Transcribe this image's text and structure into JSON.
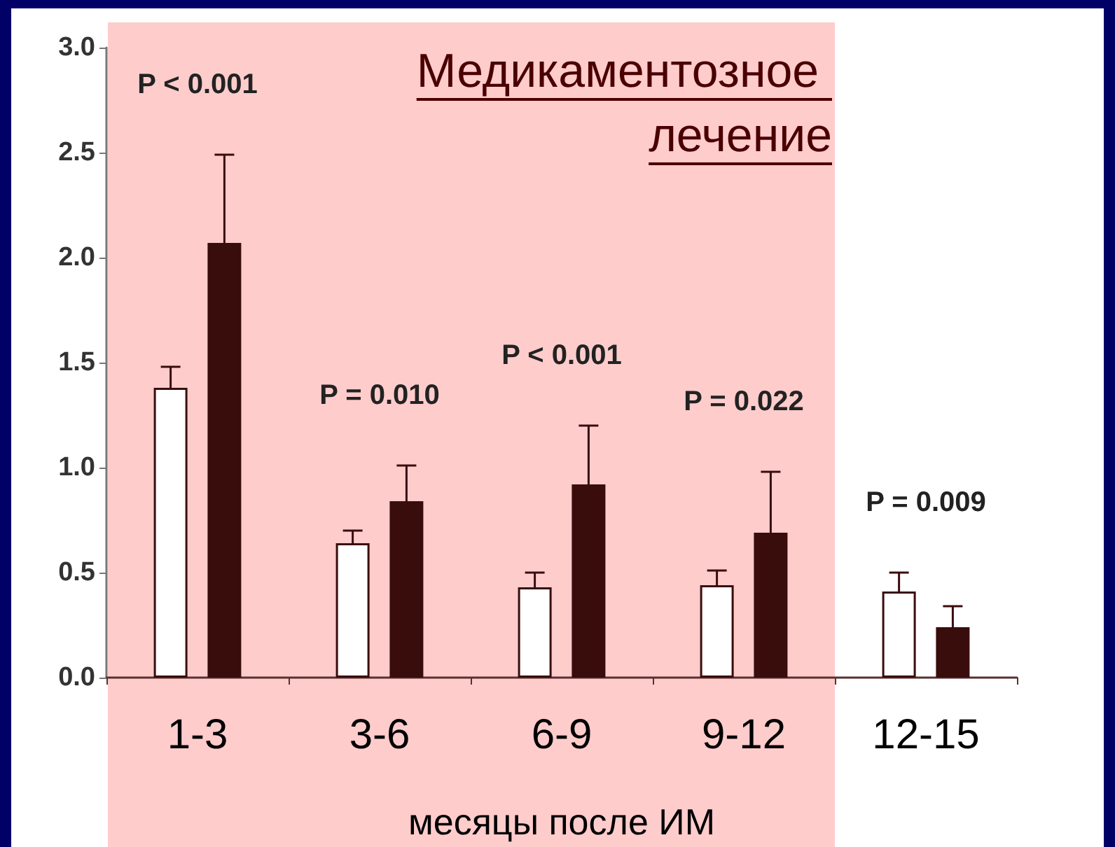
{
  "chart_data": {
    "type": "bar",
    "xlabel": "месяцы после ИМ",
    "categories": [
      "1-3",
      "3-6",
      "6-9",
      "9-12",
      "12-15"
    ],
    "series": [
      {
        "color": "#ffffff",
        "values": [
          1.38,
          0.64,
          0.43,
          0.44,
          0.41
        ],
        "errors": [
          [
            1.38,
            1.48
          ],
          [
            0.64,
            0.7
          ],
          [
            0.43,
            0.5
          ],
          [
            0.44,
            0.51
          ],
          [
            0.41,
            0.5
          ]
        ]
      },
      {
        "color": "#3a0d0d",
        "values": [
          2.07,
          0.84,
          0.92,
          0.69,
          0.24
        ],
        "errors": [
          [
            2.07,
            2.49
          ],
          [
            0.84,
            1.01
          ],
          [
            0.92,
            1.2
          ],
          [
            0.69,
            0.98
          ],
          [
            0.24,
            0.34
          ]
        ]
      }
    ],
    "ylim": [
      0,
      3.0
    ],
    "yticks": [
      {
        "value": 0,
        "label": "0.0"
      },
      {
        "value": 0.5,
        "label": "0.5"
      },
      {
        "value": 1,
        "label": "1.0"
      },
      {
        "value": 1.5,
        "label": "1.5"
      },
      {
        "value": 2,
        "label": "2.0"
      },
      {
        "value": 2.5,
        "label": "2.5"
      },
      {
        "value": 3,
        "label": "3.0"
      }
    ],
    "grid": false,
    "bands": [
      {
        "axis": "x",
        "from": "1-3",
        "to": "9-12",
        "label": "Медикаментозное \nлечение",
        "color": "#ffcccc"
      }
    ],
    "annotations": [
      "P < 0.001",
      "P = 0.010",
      "P < 0.001",
      "P = 0.022",
      "P = 0.009"
    ]
  }
}
